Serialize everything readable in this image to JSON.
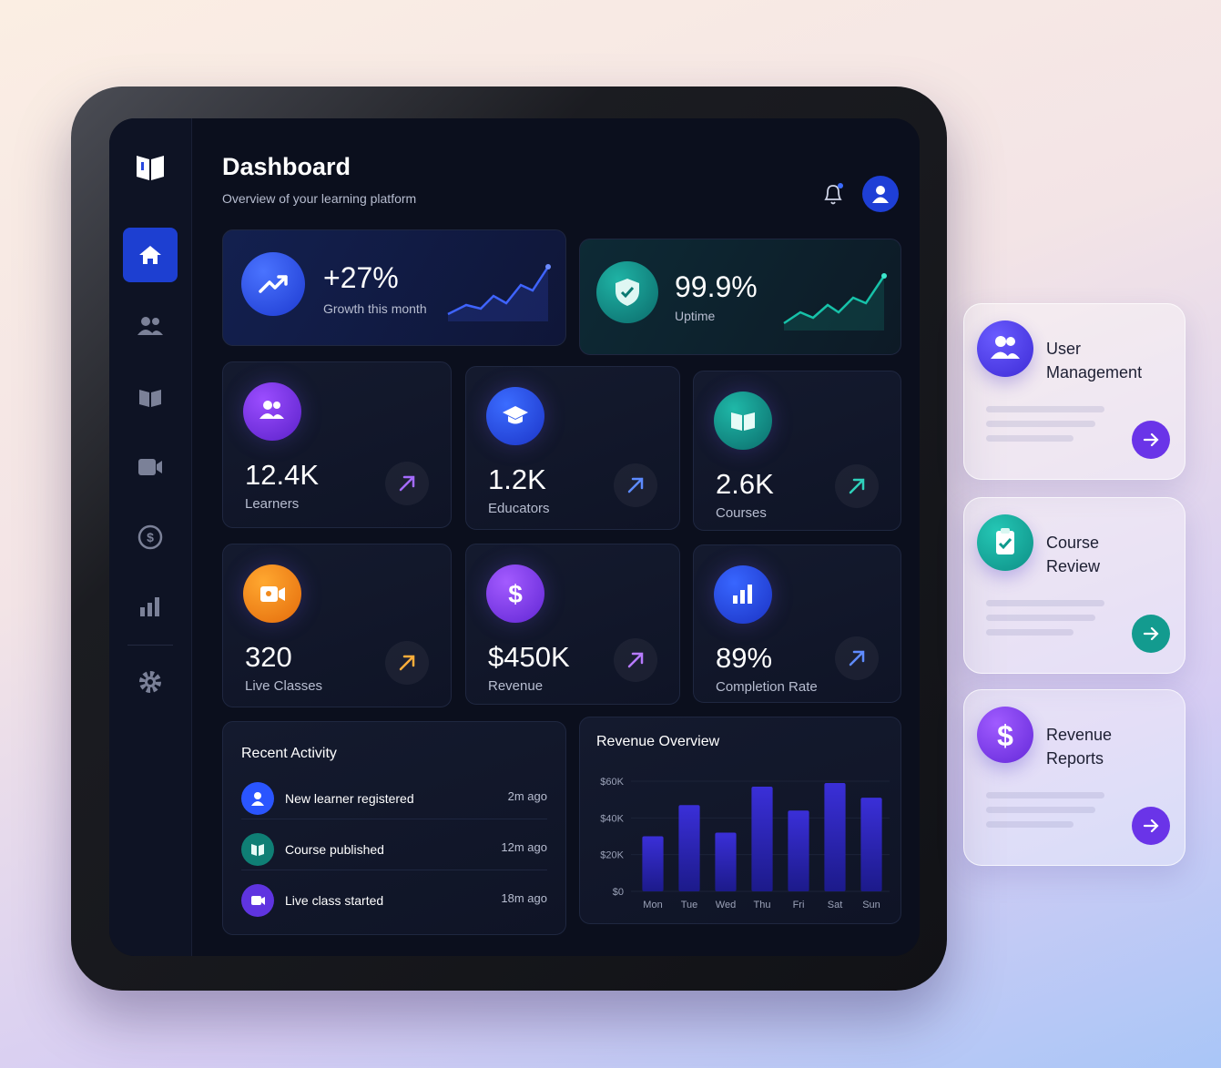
{
  "header": {
    "title": "Dashboard",
    "subtitle": "Overview of your learning platform"
  },
  "highlights": [
    {
      "value": "+27%",
      "label": "Growth this month"
    },
    {
      "value": "99.9%",
      "label": "Uptime"
    }
  ],
  "stats": [
    {
      "value": "12.4K",
      "label": "Learners"
    },
    {
      "value": "1.2K",
      "label": "Educators"
    },
    {
      "value": "2.6K",
      "label": "Courses"
    },
    {
      "value": "320",
      "label": "Live Classes"
    },
    {
      "value": "$450K",
      "label": "Revenue"
    },
    {
      "value": "89%",
      "label": "Completion Rate"
    }
  ],
  "recent_activity": {
    "title": "Recent Activity",
    "items": [
      {
        "text": "New learner registered",
        "time": "2m ago"
      },
      {
        "text": "Course published",
        "time": "12m ago"
      },
      {
        "text": "Live class started",
        "time": "18m ago"
      }
    ]
  },
  "revenue_chart": {
    "type": "bar",
    "title": "Revenue Overview",
    "categories": [
      "Mon",
      "Tue",
      "Wed",
      "Thu",
      "Fri",
      "Sat",
      "Sun"
    ],
    "values": [
      30000,
      47000,
      32000,
      57000,
      44000,
      59000,
      51000
    ],
    "color": "#3a2fd8",
    "ylim": [
      0,
      60000
    ],
    "yticks": [
      {
        "value": 0,
        "label": "$0"
      },
      {
        "value": 20000,
        "label": "$20K"
      },
      {
        "value": 40000,
        "label": "$40K"
      },
      {
        "value": 60000,
        "label": "$60K"
      }
    ],
    "grid": true
  },
  "side_cards": [
    {
      "title": "User Management"
    },
    {
      "title": "Course Review"
    },
    {
      "title": "Revenue Reports"
    }
  ]
}
